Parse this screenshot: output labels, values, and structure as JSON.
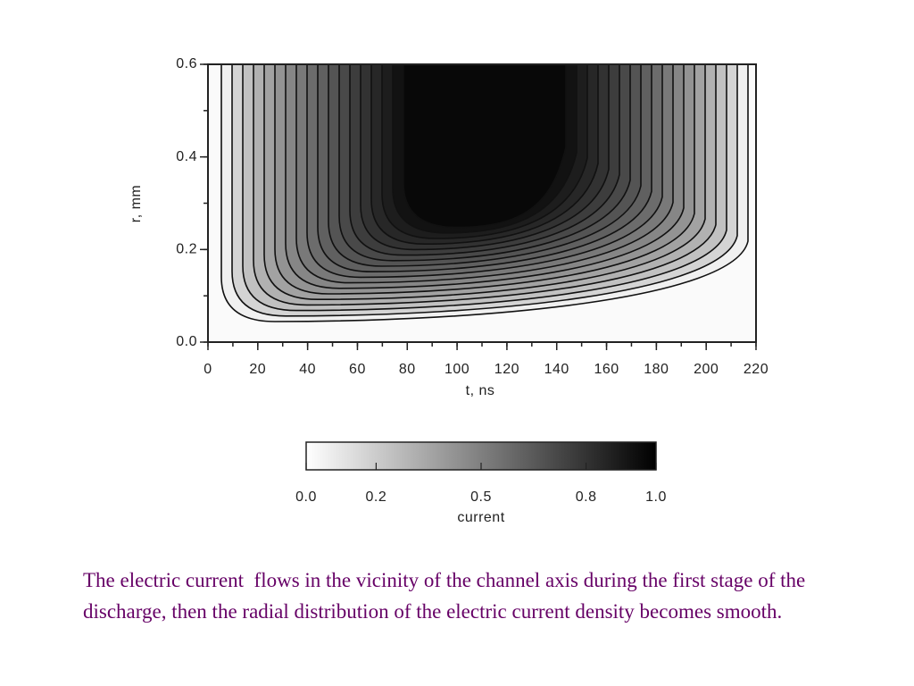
{
  "chart_data": {
    "type": "contour",
    "xlabel": "t, ns",
    "ylabel": "r, mm",
    "xlim": [
      0,
      220
    ],
    "xticks": [
      0,
      20,
      40,
      60,
      80,
      100,
      120,
      140,
      160,
      180,
      200,
      220
    ],
    "ylim": [
      0,
      0.6
    ],
    "yticks": [
      {
        "value": 0,
        "label": "0.0"
      },
      0.2,
      0.4,
      0.6
    ],
    "colorbar": {
      "label": "current",
      "lim": [
        0,
        1
      ],
      "ticks": [
        {
          "value": 0,
          "label": "0.0"
        },
        0.2,
        0.5,
        0.8,
        {
          "value": 1,
          "label": "1.0"
        }
      ]
    }
  },
  "caption": "The electric current  flows in the vicinity of the channel axis during the first stage of the discharge, then the radial distribution of the electric current density becomes smooth."
}
